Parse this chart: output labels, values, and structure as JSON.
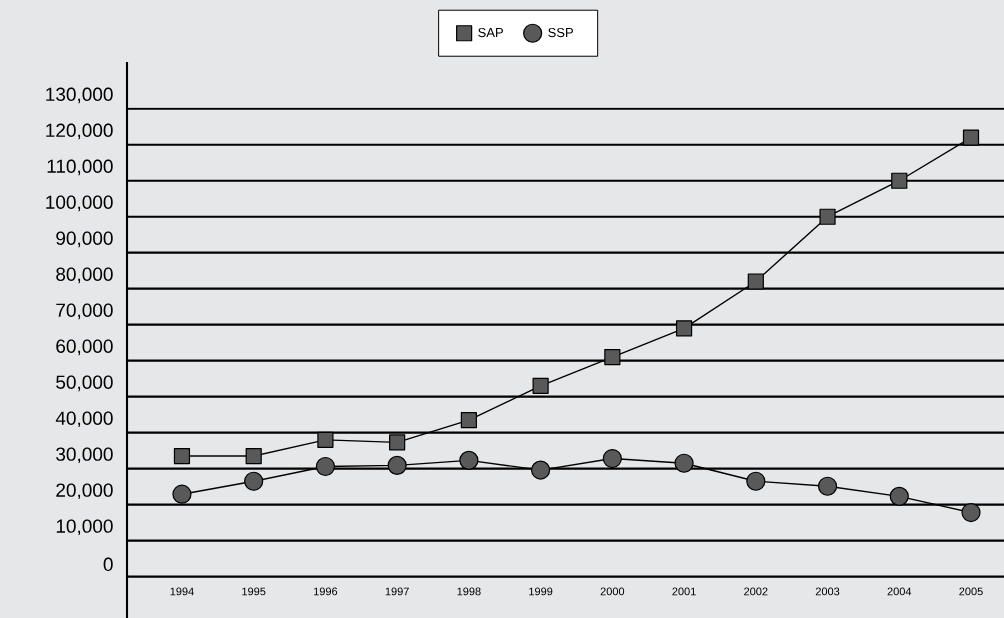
{
  "chart_data": {
    "type": "line",
    "categories": [
      "1994",
      "1995",
      "1996",
      "1997",
      "1998",
      "1999",
      "2000",
      "2001",
      "2002",
      "2003",
      "2004",
      "2005"
    ],
    "series": [
      {
        "name": "SAP",
        "color": "#595959",
        "marker": "square",
        "values": [
          33500,
          33500,
          38000,
          37300,
          43500,
          53000,
          61000,
          69000,
          82000,
          100000,
          110000,
          122000
        ]
      },
      {
        "name": "SSP",
        "color": "#595959",
        "marker": "circle",
        "values": [
          22900,
          26500,
          30600,
          30900,
          32300,
          29600,
          32800,
          31500,
          26500,
          25100,
          22300,
          17800
        ]
      }
    ],
    "ylim": [
      -11500,
      143000
    ],
    "yticks": [
      {
        "value": 0,
        "label": "0"
      },
      {
        "value": 10000,
        "label": "10,000"
      },
      {
        "value": 20000,
        "label": "20,000"
      },
      {
        "value": 30000,
        "label": "30,000"
      },
      {
        "value": 40000,
        "label": "40,000"
      },
      {
        "value": 50000,
        "label": "50,000"
      },
      {
        "value": 60000,
        "label": "60,000"
      },
      {
        "value": 70000,
        "label": "70,000"
      },
      {
        "value": 80000,
        "label": "80,000"
      },
      {
        "value": 90000,
        "label": "90,000"
      },
      {
        "value": 100000,
        "label": "100,000"
      },
      {
        "value": 110000,
        "label": "110,000"
      },
      {
        "value": 120000,
        "label": "120,000"
      },
      {
        "value": 130000,
        "label": "130,000"
      }
    ],
    "grid": "y",
    "legend": "top",
    "line_style": "solid"
  }
}
